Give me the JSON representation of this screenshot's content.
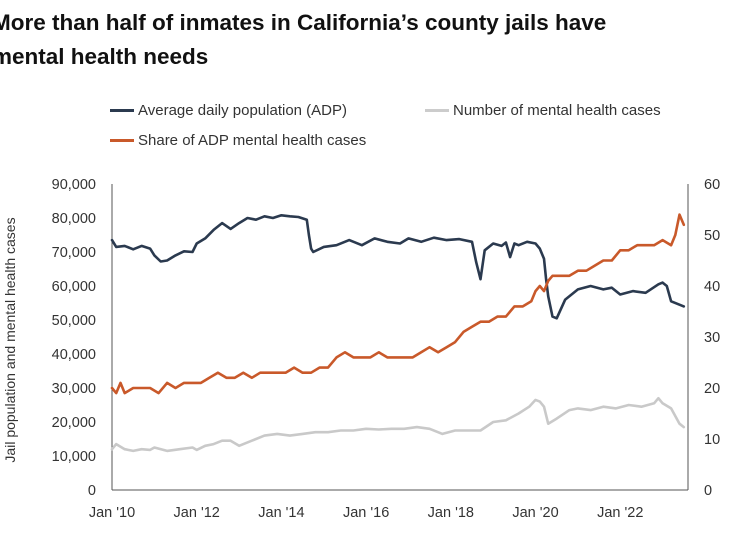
{
  "chart_data": {
    "type": "line",
    "title": "More than half of inmates in California’s county jails have\nmental health needs",
    "ylabel": "Jail population and mental health cases",
    "y2label": "",
    "ylim": [
      0,
      90000
    ],
    "y2lim": [
      0,
      60
    ],
    "yticks": [
      "0",
      "10,000",
      "20,000",
      "30,000",
      "40,000",
      "50,000",
      "60,000",
      "70,000",
      "80,000",
      "90,000"
    ],
    "y2ticks": [
      "0",
      "10",
      "20",
      "30",
      "40",
      "50",
      "60"
    ],
    "xlim": [
      2010.0,
      2023.6
    ],
    "xticks": [
      {
        "value": 2010,
        "label": "Jan '10"
      },
      {
        "value": 2012,
        "label": "Jan '12"
      },
      {
        "value": 2014,
        "label": "Jan '14"
      },
      {
        "value": 2016,
        "label": "Jan '16"
      },
      {
        "value": 2018,
        "label": "Jan '18"
      },
      {
        "value": 2020,
        "label": "Jan '20"
      },
      {
        "value": 2022,
        "label": "Jan '22"
      }
    ],
    "grid": false,
    "legend": "top",
    "series": [
      {
        "name": "Average daily population (ADP)",
        "axis": "left",
        "color": "#2b3a4f",
        "x": [
          2010.0,
          2010.1,
          2010.3,
          2010.5,
          2010.7,
          2010.9,
          2011.0,
          2011.15,
          2011.3,
          2011.5,
          2011.7,
          2011.9,
          2012.0,
          2012.2,
          2012.4,
          2012.6,
          2012.8,
          2013.0,
          2013.2,
          2013.4,
          2013.6,
          2013.8,
          2014.0,
          2014.2,
          2014.4,
          2014.6,
          2014.65,
          2014.7,
          2014.75,
          2015.0,
          2015.3,
          2015.6,
          2015.9,
          2016.2,
          2016.5,
          2016.8,
          2017.0,
          2017.3,
          2017.6,
          2017.9,
          2018.2,
          2018.5,
          2018.6,
          2018.7,
          2018.8,
          2019.0,
          2019.2,
          2019.3,
          2019.4,
          2019.5,
          2019.6,
          2019.8,
          2020.0,
          2020.1,
          2020.2,
          2020.25,
          2020.3,
          2020.4,
          2020.5,
          2020.7,
          2021.0,
          2021.3,
          2021.6,
          2021.8,
          2022.0,
          2022.3,
          2022.6,
          2022.9,
          2023.0,
          2023.1,
          2023.2,
          2023.4,
          2023.5
        ],
        "y": [
          73500,
          71500,
          71800,
          70800,
          71800,
          71000,
          69000,
          67200,
          67500,
          69000,
          70200,
          70000,
          72500,
          74000,
          76500,
          78500,
          76800,
          78500,
          80000,
          79500,
          80500,
          80000,
          80800,
          80500,
          80300,
          79500,
          75000,
          71000,
          70000,
          71500,
          72000,
          73500,
          72000,
          74000,
          73000,
          72500,
          74000,
          73000,
          74200,
          73500,
          73800,
          73000,
          67000,
          62000,
          70500,
          72500,
          71800,
          72800,
          68500,
          72500,
          72000,
          73000,
          72500,
          71000,
          68000,
          62000,
          57000,
          51000,
          50500,
          56000,
          59000,
          60000,
          59000,
          59500,
          57500,
          58500,
          58000,
          60500,
          61000,
          60000,
          55500,
          54500,
          54000
        ]
      },
      {
        "name": "Number of mental health cases",
        "axis": "left",
        "color": "#c9c9c9",
        "x": [
          2010.0,
          2010.1,
          2010.3,
          2010.5,
          2010.7,
          2010.9,
          2011.0,
          2011.3,
          2011.6,
          2011.9,
          2012.0,
          2012.2,
          2012.4,
          2012.6,
          2012.8,
          2013.0,
          2013.3,
          2013.6,
          2013.9,
          2014.2,
          2014.5,
          2014.8,
          2015.1,
          2015.4,
          2015.7,
          2016.0,
          2016.3,
          2016.6,
          2016.9,
          2017.2,
          2017.5,
          2017.8,
          2018.1,
          2018.4,
          2018.7,
          2019.0,
          2019.3,
          2019.6,
          2019.85,
          2020.0,
          2020.1,
          2020.2,
          2020.3,
          2020.5,
          2020.8,
          2021.0,
          2021.3,
          2021.6,
          2021.9,
          2022.2,
          2022.5,
          2022.8,
          2022.9,
          2023.0,
          2023.2,
          2023.4,
          2023.5
        ],
        "y": [
          12000,
          13500,
          12000,
          11500,
          12000,
          11800,
          12500,
          11500,
          12000,
          12500,
          11800,
          13000,
          13500,
          14500,
          14500,
          13000,
          14500,
          16000,
          16500,
          16000,
          16500,
          17000,
          17000,
          17500,
          17500,
          18000,
          17800,
          18000,
          18000,
          18500,
          18000,
          16500,
          17500,
          17500,
          17500,
          20000,
          20500,
          22500,
          24500,
          26500,
          26000,
          24500,
          19500,
          21000,
          23500,
          24000,
          23500,
          24500,
          24000,
          25000,
          24500,
          25500,
          27000,
          25500,
          24000,
          19500,
          18500
        ]
      },
      {
        "name": "Share of ADP mental health cases",
        "axis": "right",
        "color": "#c9592a",
        "x": [
          2010.0,
          2010.1,
          2010.2,
          2010.3,
          2010.5,
          2010.7,
          2010.9,
          2011.1,
          2011.3,
          2011.5,
          2011.7,
          2011.9,
          2012.1,
          2012.3,
          2012.5,
          2012.7,
          2012.9,
          2013.1,
          2013.3,
          2013.5,
          2013.7,
          2013.9,
          2014.1,
          2014.3,
          2014.5,
          2014.7,
          2014.9,
          2015.1,
          2015.3,
          2015.5,
          2015.7,
          2015.9,
          2016.1,
          2016.3,
          2016.5,
          2016.7,
          2016.9,
          2017.1,
          2017.3,
          2017.5,
          2017.7,
          2017.9,
          2018.1,
          2018.3,
          2018.5,
          2018.7,
          2018.9,
          2019.1,
          2019.3,
          2019.5,
          2019.7,
          2019.9,
          2020.0,
          2020.1,
          2020.2,
          2020.3,
          2020.4,
          2020.6,
          2020.8,
          2021.0,
          2021.2,
          2021.4,
          2021.6,
          2021.8,
          2022.0,
          2022.2,
          2022.4,
          2022.6,
          2022.8,
          2023.0,
          2023.2,
          2023.3,
          2023.4,
          2023.5
        ],
        "y": [
          20,
          19,
          21,
          19,
          20,
          20,
          20,
          19,
          21,
          20,
          21,
          21,
          21,
          22,
          23,
          22,
          22,
          23,
          22,
          23,
          23,
          23,
          23,
          24,
          23,
          23,
          24,
          24,
          26,
          27,
          26,
          26,
          26,
          27,
          26,
          26,
          26,
          26,
          27,
          28,
          27,
          28,
          29,
          31,
          32,
          33,
          33,
          34,
          34,
          36,
          36,
          37,
          39,
          40,
          39,
          41,
          42,
          42,
          42,
          43,
          43,
          44,
          45,
          45,
          47,
          47,
          48,
          48,
          48,
          49,
          48,
          50,
          54,
          52
        ]
      }
    ]
  }
}
